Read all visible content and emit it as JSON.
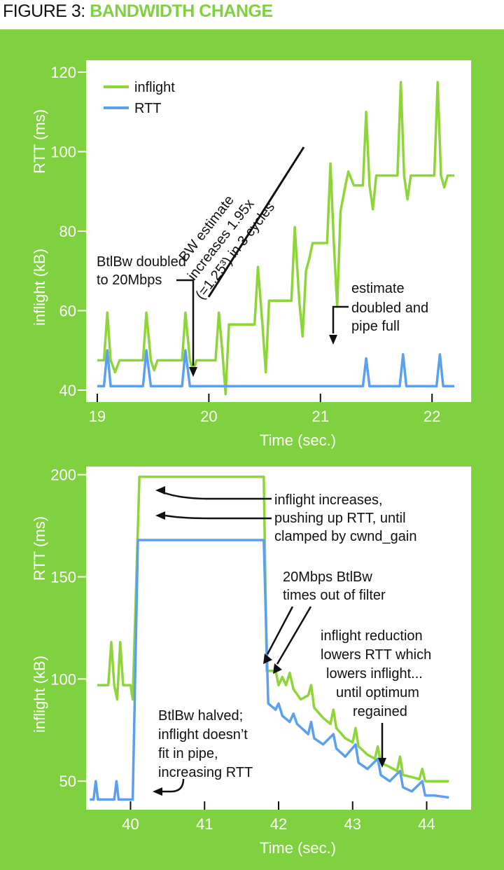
{
  "header": {
    "label": "FIGURE 3:",
    "title": "BANDWIDTH CHANGE"
  },
  "colors": {
    "background": "#7fd13f",
    "inflight": "#8ed53a",
    "rtt": "#5b9ff0",
    "plot_bg": "#ffffff"
  },
  "chart_data": [
    {
      "type": "line",
      "xlabel": "Time (sec.)",
      "ylabel_top": "RTT (ms)",
      "ylabel_bottom": "inflight (kB)",
      "xlim": [
        18.9,
        22.35
      ],
      "ylim": [
        37,
        123
      ],
      "xticks": [
        19,
        20,
        21,
        22
      ],
      "yticks": [
        40,
        60,
        80,
        100,
        120
      ],
      "legend": {
        "position": "top-left",
        "entries": [
          "inflight",
          "RTT"
        ]
      },
      "series": [
        {
          "name": "inflight",
          "points": [
            [
              19.0,
              47.5
            ],
            [
              19.06,
              47.5
            ],
            [
              19.09,
              59.5
            ],
            [
              19.12,
              47.5
            ],
            [
              19.16,
              44.5
            ],
            [
              19.2,
              47.5
            ],
            [
              19.41,
              47.5
            ],
            [
              19.44,
              59.5
            ],
            [
              19.48,
              47.5
            ],
            [
              19.51,
              45
            ],
            [
              19.54,
              47.5
            ],
            [
              19.76,
              47.5
            ],
            [
              19.79,
              59.5
            ],
            [
              19.83,
              47.5
            ],
            [
              19.86,
              45
            ],
            [
              19.89,
              47.5
            ],
            [
              20.06,
              47.5
            ],
            [
              20.09,
              59.5
            ],
            [
              20.12,
              50
            ],
            [
              20.15,
              39
            ],
            [
              20.18,
              56.5
            ],
            [
              20.41,
              56.5
            ],
            [
              20.44,
              71
            ],
            [
              20.48,
              56.5
            ],
            [
              20.51,
              44.5
            ],
            [
              20.54,
              62.5
            ],
            [
              20.74,
              62.5
            ],
            [
              20.77,
              81
            ],
            [
              20.81,
              62.5
            ],
            [
              20.84,
              53.5
            ],
            [
              20.87,
              70
            ],
            [
              20.9,
              73
            ],
            [
              20.93,
              77
            ],
            [
              21.06,
              77
            ],
            [
              21.09,
              97
            ],
            [
              21.12,
              77
            ],
            [
              21.15,
              61
            ],
            [
              21.18,
              85
            ],
            [
              21.22,
              91
            ],
            [
              21.25,
              95
            ],
            [
              21.3,
              91.5
            ],
            [
              21.38,
              91.5
            ],
            [
              21.41,
              110
            ],
            [
              21.44,
              91.5
            ],
            [
              21.47,
              85.5
            ],
            [
              21.5,
              94
            ],
            [
              21.69,
              94
            ],
            [
              21.72,
              117.5
            ],
            [
              21.75,
              94
            ],
            [
              21.78,
              88
            ],
            [
              21.81,
              94
            ],
            [
              22.02,
              94
            ],
            [
              22.05,
              117.5
            ],
            [
              22.08,
              94
            ],
            [
              22.11,
              91
            ],
            [
              22.14,
              94
            ],
            [
              22.2,
              94
            ]
          ]
        },
        {
          "name": "RTT",
          "points": [
            [
              19.0,
              41
            ],
            [
              19.06,
              41
            ],
            [
              19.09,
              50
            ],
            [
              19.12,
              41
            ],
            [
              19.41,
              41
            ],
            [
              19.44,
              50
            ],
            [
              19.48,
              41
            ],
            [
              19.76,
              41
            ],
            [
              19.79,
              50
            ],
            [
              19.83,
              41
            ],
            [
              21.38,
              41
            ],
            [
              21.41,
              48
            ],
            [
              21.44,
              41
            ],
            [
              21.71,
              41
            ],
            [
              21.74,
              49
            ],
            [
              21.77,
              41
            ],
            [
              22.04,
              41
            ],
            [
              22.07,
              49
            ],
            [
              22.1,
              41
            ],
            [
              22.2,
              41
            ]
          ]
        }
      ],
      "annotations": [
        {
          "lines": [
            "BtlBw doubled",
            "to 20Mbps"
          ]
        },
        {
          "lines": [
            "BW estimate",
            "increases 1.95x",
            "(=1.25³) in 3 cycles"
          ]
        },
        {
          "lines": [
            "estimate",
            "doubled and",
            "pipe full"
          ]
        }
      ]
    },
    {
      "type": "line",
      "xlabel": "Time (sec.)",
      "ylabel_top": "RTT (ms)",
      "ylabel_bottom": "inflight (kB)",
      "xlim": [
        39.4,
        44.6
      ],
      "ylim": [
        36,
        204
      ],
      "xticks": [
        40,
        41,
        42,
        43,
        44
      ],
      "yticks": [
        50,
        100,
        150,
        200
      ],
      "series": [
        {
          "name": "inflight",
          "points": [
            [
              39.55,
              97
            ],
            [
              39.7,
              97
            ],
            [
              39.74,
              118
            ],
            [
              39.78,
              97
            ],
            [
              39.82,
              90
            ],
            [
              39.86,
              118
            ],
            [
              39.9,
              97
            ],
            [
              40.0,
              97
            ],
            [
              40.03,
              90
            ],
            [
              40.12,
              199
            ],
            [
              41.8,
              199
            ],
            [
              41.84,
              104
            ],
            [
              41.96,
              104
            ],
            [
              42.0,
              97
            ],
            [
              42.05,
              101
            ],
            [
              42.1,
              97
            ],
            [
              42.15,
              103
            ],
            [
              42.2,
              95
            ],
            [
              42.3,
              90
            ],
            [
              42.4,
              92
            ],
            [
              42.44,
              97
            ],
            [
              42.48,
              86
            ],
            [
              42.6,
              81
            ],
            [
              42.7,
              78
            ],
            [
              42.74,
              85
            ],
            [
              42.78,
              76
            ],
            [
              42.9,
              71
            ],
            [
              43.0,
              69
            ],
            [
              43.04,
              76
            ],
            [
              43.08,
              67
            ],
            [
              43.2,
              63
            ],
            [
              43.3,
              61
            ],
            [
              43.34,
              67
            ],
            [
              43.38,
              59
            ],
            [
              43.5,
              57
            ],
            [
              43.6,
              55
            ],
            [
              43.64,
              62
            ],
            [
              43.68,
              53
            ],
            [
              43.8,
              52
            ],
            [
              43.9,
              51
            ],
            [
              43.94,
              56
            ],
            [
              43.98,
              50
            ],
            [
              44.1,
              50
            ],
            [
              44.3,
              50
            ]
          ]
        },
        {
          "name": "RTT",
          "points": [
            [
              39.45,
              41
            ],
            [
              39.5,
              41
            ],
            [
              39.53,
              50
            ],
            [
              39.56,
              41
            ],
            [
              39.78,
              41
            ],
            [
              39.81,
              50
            ],
            [
              39.84,
              41
            ],
            [
              40.03,
              41
            ],
            [
              40.1,
              168
            ],
            [
              41.8,
              168
            ],
            [
              41.86,
              88
            ],
            [
              41.96,
              85
            ],
            [
              42.0,
              88
            ],
            [
              42.05,
              82
            ],
            [
              42.15,
              79
            ],
            [
              42.2,
              83
            ],
            [
              42.25,
              78
            ],
            [
              42.4,
              73
            ],
            [
              42.44,
              79
            ],
            [
              42.48,
              71
            ],
            [
              42.6,
              68
            ],
            [
              42.74,
              73
            ],
            [
              42.78,
              66
            ],
            [
              42.9,
              62
            ],
            [
              43.04,
              68
            ],
            [
              43.08,
              59
            ],
            [
              43.2,
              56
            ],
            [
              43.34,
              61
            ],
            [
              43.38,
              53
            ],
            [
              43.5,
              50
            ],
            [
              43.64,
              55
            ],
            [
              43.68,
              47
            ],
            [
              43.8,
              45
            ],
            [
              43.94,
              50
            ],
            [
              43.98,
              43
            ],
            [
              44.1,
              43
            ],
            [
              44.3,
              42
            ]
          ]
        }
      ],
      "annotations": [
        {
          "lines": [
            "inflight increases,",
            "pushing up RTT, until",
            "clamped by cwnd_gain"
          ]
        },
        {
          "lines": [
            "20Mbps BtlBw",
            "times out of filter"
          ]
        },
        {
          "lines": [
            "inflight reduction",
            "lowers RTT which",
            "lowers inflight...",
            "until optimum",
            "regained"
          ]
        },
        {
          "lines": [
            "BtlBw halved;",
            "inflight doesn’t",
            "fit in pipe,",
            "increasing RTT"
          ]
        }
      ]
    }
  ]
}
